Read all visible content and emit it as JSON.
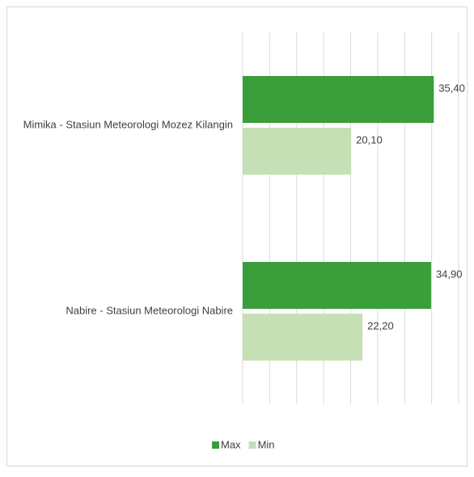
{
  "chart_data": {
    "type": "hbar",
    "categories": [
      "Mimika -  Stasiun Meteorologi Mozez Kilangin",
      "Nabire - Stasiun Meteorologi Nabire"
    ],
    "series": [
      {
        "name": "Max",
        "color": "#3a9e3a",
        "values": [
          35.4,
          34.9
        ],
        "value_labels": [
          "35,40",
          "34,90"
        ]
      },
      {
        "name": "Min",
        "color": "#c5e0b4",
        "values": [
          20.1,
          22.2
        ],
        "value_labels": [
          "20,10",
          "22,20"
        ]
      }
    ],
    "xlim": [
      0,
      40
    ],
    "xticks": [
      0,
      5,
      10,
      15,
      20,
      25,
      30,
      35,
      40
    ],
    "grid": true,
    "legend": "bottom"
  }
}
